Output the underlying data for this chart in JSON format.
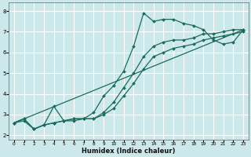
{
  "xlabel": "Humidex (Indice chaleur)",
  "xlim": [
    -0.5,
    23.5
  ],
  "ylim": [
    1.8,
    8.4
  ],
  "xticks": [
    0,
    1,
    2,
    3,
    4,
    5,
    6,
    7,
    8,
    9,
    10,
    11,
    12,
    13,
    14,
    15,
    16,
    17,
    18,
    19,
    20,
    21,
    22,
    23
  ],
  "yticks": [
    2,
    3,
    4,
    5,
    6,
    7,
    8
  ],
  "bg_color": "#cce8ea",
  "line_color": "#1a6b5e",
  "grid_color": "#ffffff",
  "lines": [
    {
      "x": [
        0,
        1,
        2,
        3,
        4,
        5,
        6,
        7,
        8,
        9,
        10,
        11,
        12,
        13,
        14,
        15,
        16,
        17,
        18,
        19,
        20,
        21,
        22,
        23
      ],
      "y": [
        2.6,
        2.8,
        2.3,
        2.5,
        3.4,
        2.7,
        2.8,
        2.8,
        3.1,
        3.9,
        4.4,
        5.1,
        6.3,
        7.9,
        7.5,
        7.6,
        7.6,
        7.4,
        7.3,
        7.1,
        6.6,
        6.4,
        6.5,
        7.1
      ]
    },
    {
      "x": [
        0,
        1,
        2,
        3,
        4,
        5,
        6,
        7,
        8,
        9,
        10,
        11,
        12,
        13,
        14,
        15,
        16,
        17,
        18,
        19,
        20,
        21,
        22,
        23
      ],
      "y": [
        2.6,
        2.8,
        2.3,
        2.5,
        2.6,
        2.7,
        2.8,
        2.8,
        2.8,
        3.1,
        3.6,
        4.3,
        5.0,
        5.8,
        6.3,
        6.5,
        6.6,
        6.6,
        6.7,
        6.9,
        6.9,
        7.0,
        7.1,
        7.1
      ]
    },
    {
      "x": [
        0,
        1,
        2,
        3,
        4,
        5,
        6,
        7,
        8,
        9,
        10,
        11,
        12,
        13,
        14,
        15,
        16,
        17,
        18,
        19,
        20,
        21,
        22,
        23
      ],
      "y": [
        2.6,
        2.7,
        2.3,
        2.5,
        2.6,
        2.7,
        2.7,
        2.8,
        2.8,
        3.0,
        3.3,
        3.9,
        4.5,
        5.2,
        5.8,
        6.0,
        6.2,
        6.3,
        6.4,
        6.6,
        6.7,
        6.8,
        6.9,
        7.0
      ]
    },
    {
      "x": [
        0,
        23
      ],
      "y": [
        2.6,
        7.1
      ]
    }
  ]
}
